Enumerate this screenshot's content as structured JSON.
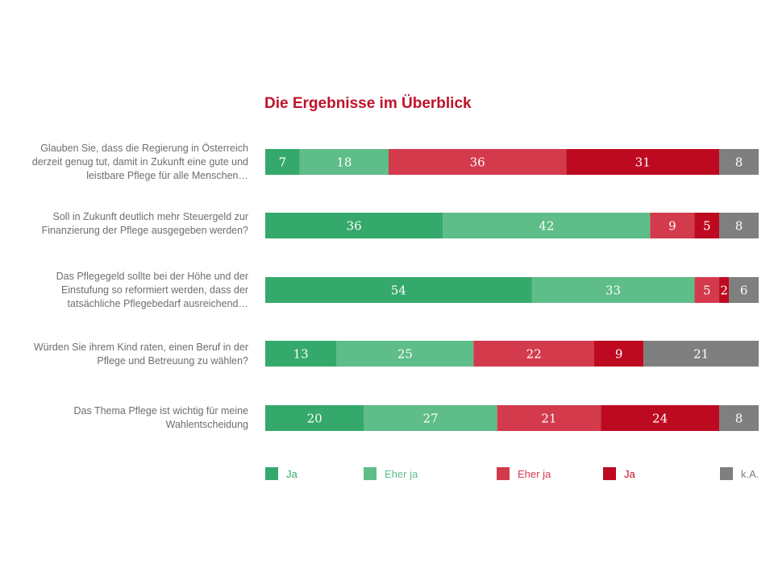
{
  "chart_data": {
    "type": "bar",
    "orientation": "horizontal",
    "stacked": true,
    "title": "Die Ergebnisse im Überblick",
    "categories": [
      "Glauben Sie, dass die Regierung in Österreich derzeit genug tut, damit in Zukunft eine gute und leistbare Pflege für alle Menschen…",
      "Soll in Zukunft deutlich mehr Steuergeld zur Finanzierung der Pflege ausgegeben werden?",
      "Das Pflegegeld sollte bei der Höhe und der Einstufung so reformiert werden, dass der tatsächliche Pflegebedarf ausreichend…",
      "Würden Sie ihrem Kind raten, einen Beruf in der Pflege und Betreuung zu wählen?",
      "Das Thema Pflege ist wichtig für meine Wahlentscheidung"
    ],
    "series": [
      {
        "name": "Ja",
        "color": "#35a96b",
        "text_color": "#35a96b",
        "values": [
          7,
          36,
          54,
          13,
          20
        ]
      },
      {
        "name": "Eher ja",
        "color": "#5ebd88",
        "text_color": "#5ebd88",
        "values": [
          18,
          42,
          33,
          25,
          27
        ]
      },
      {
        "name": "Eher ja",
        "color": "#d33a4c",
        "text_color": "#d33a4c",
        "values": [
          36,
          9,
          5,
          22,
          21
        ]
      },
      {
        "name": "Ja",
        "color": "#bd0a20",
        "text_color": "#bd0a20",
        "values": [
          31,
          5,
          2,
          9,
          24
        ]
      },
      {
        "name": "k.A.",
        "color": "#7f7f7f",
        "text_color": "#7f7f7f",
        "values": [
          8,
          8,
          6,
          21,
          8
        ]
      }
    ],
    "xlabel": "",
    "ylabel": "",
    "legend": "bottom"
  }
}
